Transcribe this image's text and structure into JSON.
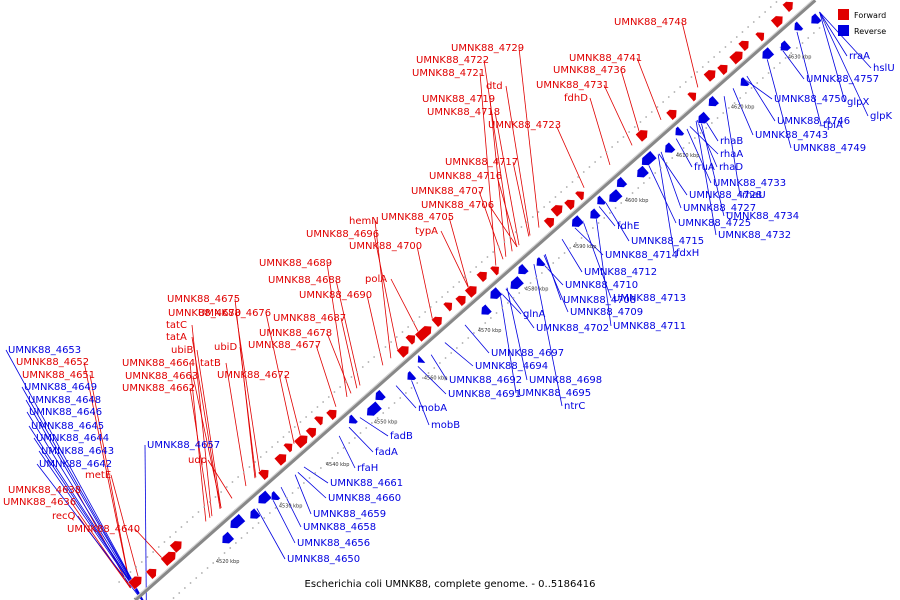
{
  "caption": "Escherichia coli UMNK88, complete genome. - 0..5186416",
  "legend": {
    "forward_label": "Forward",
    "reverse_label": "Reverse",
    "forward_color": "#e00000",
    "reverse_color": "#0000e0"
  },
  "backbone_color": "#888888",
  "ticks": [
    "4520 kbp",
    "4530 kbp",
    "4540 kbp",
    "4550 kbp",
    "4560 kbp",
    "4570 kbp",
    "4580 kbp",
    "4590 kbp",
    "4600 kbp",
    "4610 kbp",
    "4620 kbp",
    "4630 kbp"
  ],
  "forward_labels": [
    "UMNK88_4748",
    "UMNK88_4729",
    "UMNK88_4741",
    "UMNK88_4722",
    "UMNK88_4721",
    "UMNK88_4736",
    "dtd",
    "UMNK88_4731",
    "UMNK88_4719",
    "fdhD",
    "UMNK88_4718",
    "UMNK88_4723",
    "UMNK88_4717",
    "UMNK88_4716",
    "UMNK88_4707",
    "UMNK88_4706",
    "hemN",
    "UMNK88_4705",
    "UMNK88_4696",
    "typA",
    "UMNK88_4700",
    "UMNK88_4689",
    "UMNK88_4688",
    "polA",
    "UMNK88_4690",
    "UMNK88_4675",
    "UMNK88_4670",
    "UMNK88_4676",
    "UMNK88_4687",
    "tatC",
    "UMNK88_4678",
    "tatA",
    "ubiD",
    "UMNK88_4677",
    "ubiB",
    "UMNK88_4652",
    "UMNK88_4664",
    "tatB",
    "UMNK88_4651",
    "UMNK88_4663",
    "UMNK88_4672",
    "UMNK88_4662",
    "udp",
    "metE",
    "UMNK88_4638",
    "UMNK88_4636",
    "recQ",
    "UMNK88_4640"
  ],
  "reverse_labels": [
    "rraA",
    "hslU",
    "UMNK88_4757",
    "UMNK88_4750",
    "glpX",
    "glpK",
    "tpiA",
    "UMNK88_4746",
    "rhaB",
    "UMNK88_4743",
    "UMNK88_4749",
    "rhaA",
    "fruA",
    "rhaD",
    "UMNK88_4733",
    "UMNK88_4728",
    "rhaU",
    "UMNK88_4727",
    "UMNK88_4734",
    "UMNK88_4725",
    "fdhE",
    "UMNK88_4732",
    "UMNK88_4715",
    "UMNK88_4714",
    "fdxH",
    "UMNK88_4712",
    "UMNK88_4710",
    "UMNK88_4713",
    "UMNK88_4708",
    "glnA",
    "UMNK88_4709",
    "UMNK88_4702",
    "UMNK88_4711",
    "UMNK88_4653",
    "UMNK88_4697",
    "UMNK88_4694",
    "UMNK88_4692",
    "UMNK88_4698",
    "UMNK88_4649",
    "UMNK88_4691",
    "UMNK88_4695",
    "mobA",
    "UMNK88_4648",
    "ntrC",
    "UMNK88_4646",
    "mobB",
    "UMNK88_4645",
    "fadB",
    "UMNK88_4644",
    "UMNK88_4657",
    "fadA",
    "UMNK88_4643",
    "rfaH",
    "UMNK88_4642",
    "UMNK88_4661",
    "UMNK88_4660",
    "UMNK88_4659",
    "UMNK88_4658",
    "UMNK88_4656",
    "UMNK88_4650"
  ]
}
